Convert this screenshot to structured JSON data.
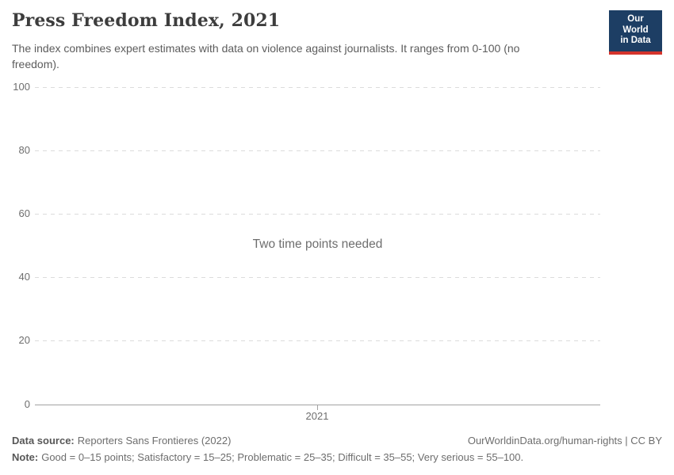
{
  "header": {
    "title": "Press Freedom Index, 2021",
    "subtitle": "The index combines expert estimates with data on violence against journalists. It ranges from 0-100 (no freedom).",
    "logo": {
      "line1": "Our World",
      "line2": "in Data"
    }
  },
  "chart_data": {
    "type": "line",
    "title": "Press Freedom Index, 2021",
    "message": "Two time points needed",
    "series": [],
    "categories": [
      2021
    ],
    "xticks": [
      "2021"
    ],
    "yticks": [
      "0",
      "20",
      "40",
      "60",
      "80",
      "100"
    ],
    "ylim": [
      0,
      100
    ],
    "xlabel": "",
    "ylabel": "",
    "grid": "horizontal-dashed",
    "legend": "none"
  },
  "footer": {
    "datasource_label": "Data source:",
    "datasource_value": "Reporters Sans Frontieres (2022)",
    "owid_url": "OurWorldinData.org/human-rights | CC BY",
    "note_label": "Note:",
    "note_text": "Good = 0–15 points; Satisfactory = 15–25; Problematic = 25–35; Difficult = 35–55; Very serious = 55–100."
  },
  "colors": {
    "logo_bg": "#1d3e64",
    "logo_accent": "#d4342c",
    "title_text": "#3d3d3d",
    "body_text": "#5c5c5c",
    "axis_label": "#6e6e6e",
    "gridline": "#dcdcdc",
    "axis_line": "#a3a3a3"
  }
}
